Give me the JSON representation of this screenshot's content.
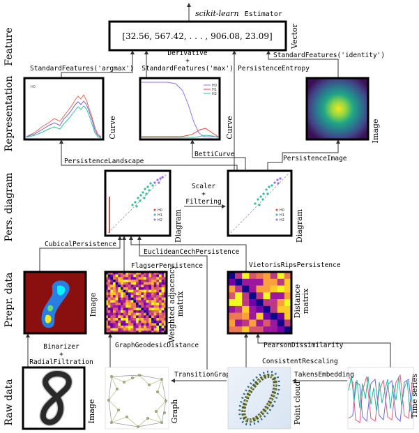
{
  "rows": {
    "feature": "Feature",
    "representation": "Representation",
    "pers_diagram": "Pers. diagram",
    "prepr_data": "Prepr. data",
    "raw_data": "Raw data"
  },
  "estimator": {
    "italic": "scikit-learn",
    "mono": "Estimator"
  },
  "vector": {
    "text": "[32.56, 567.42, . . . , 906.08, 23.09]",
    "side": "Vector"
  },
  "ops": {
    "standard_argmax": "StandardFeatures('argmax')",
    "derivative": "Derivative",
    "plus": "+",
    "standard_max": "StandardFeatures('max')",
    "persistence_entropy": "PersistenceEntropy",
    "standard_identity": "StandardFeatures('identity')",
    "persistence_landscape": "PersistenceLandscape",
    "betti_curve": "BettiCurve",
    "persistence_image": "PersistenceImage",
    "scaler": "Scaler",
    "filtering": "Filtering",
    "cubical": "CubicalPersistence",
    "euclidean_cech": "EuclideanCechPersistence",
    "flagser": "FlagserPersistence",
    "vietoris": "VietorisRipsPersistence",
    "binarizer": "Binarizer",
    "radial": "RadialFiltration",
    "graph_geodesic": "GraphGeodesicDistance",
    "pearson": "PearsonDissimilarity",
    "consistent_rescaling": "ConsistentRescaling",
    "transition_graph": "TransitionGraph",
    "takens": "TakensEmbedding"
  },
  "side_labels": {
    "curve": "Curve",
    "image": "Image",
    "diagram": "Diagram",
    "weighted_1": "Weighted adjacency",
    "weighted_2": "matrix",
    "distance_1": "Distance",
    "distance_2": "matrix",
    "graph": "Graph",
    "point_cloud": "Point cloud",
    "time_series": "Time series"
  },
  "legends": {
    "landscape": [
      "H0"
    ],
    "betti": [
      "H0",
      "H1",
      "H2"
    ],
    "diagram": [
      "H0",
      "H1",
      "H2"
    ]
  },
  "colors": {
    "h0": "#e8453c",
    "h1": "#2fbf9a",
    "h2": "#9a6cf0"
  }
}
